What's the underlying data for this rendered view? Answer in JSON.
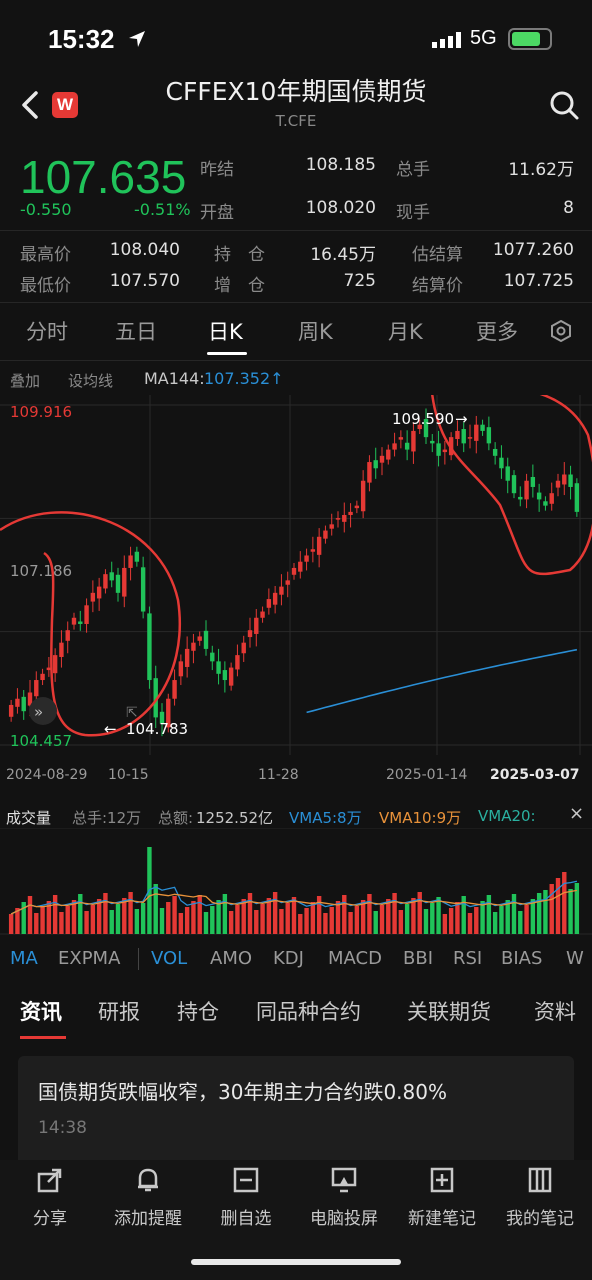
{
  "status_bar": {
    "time": "15:32",
    "network": "5G"
  },
  "header": {
    "title": "CFFEX10年期国债期货",
    "code": "T.CFE",
    "logo": "W"
  },
  "quote": {
    "price": "107.635",
    "change": "-0.550",
    "change_pct": "-0.51%",
    "prev_close_label": "昨结",
    "prev_close": "108.185",
    "total_vol_label": "总手",
    "total_vol": "11.62万",
    "open_label": "开盘",
    "open": "108.020",
    "cur_vol_label": "现手",
    "cur_vol": "8",
    "high_label": "最高价",
    "high": "108.040",
    "oi_label": "持　仓",
    "oi": "16.45万",
    "est_settle_label": "估结算",
    "est_settle": "1077.260",
    "low_label": "最低价",
    "low": "107.570",
    "oi_chg_label": "增　仓",
    "oi_chg": "725",
    "settle_label": "结算价",
    "settle": "107.725"
  },
  "period_tabs": [
    "分时",
    "五日",
    "日K",
    "周K",
    "月K",
    "更多"
  ],
  "chart_toolbar": {
    "overlay": "叠加",
    "set_ma": "设均线",
    "ma_label": "MA144:",
    "ma_value": "107.352↑"
  },
  "chart_data": {
    "type": "candlestick",
    "y_labels": {
      "top": "109.916",
      "mid": "107.186",
      "bottom": "104.457"
    },
    "ylim": [
      104.457,
      109.916
    ],
    "annotations": {
      "max": "109.590",
      "min": "104.783"
    },
    "x_labels": [
      "2024-08-29",
      "10-15",
      "11-28",
      "2025-01-14",
      "2025-03-07"
    ],
    "closes": [
      105.1,
      105.2,
      105.0,
      105.3,
      105.5,
      105.6,
      105.7,
      105.9,
      106.1,
      106.3,
      106.5,
      106.4,
      106.7,
      106.9,
      107.0,
      107.2,
      107.1,
      106.9,
      107.3,
      107.5,
      107.4,
      106.6,
      105.5,
      104.9,
      104.8,
      105.2,
      105.5,
      105.8,
      106.0,
      106.1,
      106.2,
      106.0,
      105.8,
      105.6,
      105.5,
      105.7,
      105.9,
      106.1,
      106.3,
      106.5,
      106.6,
      106.8,
      106.9,
      107.0,
      107.1,
      107.3,
      107.4,
      107.5,
      107.6,
      107.8,
      107.9,
      108.0,
      108.1,
      108.15,
      108.2,
      108.3,
      108.7,
      109.0,
      108.9,
      109.1,
      109.2,
      109.3,
      109.4,
      109.2,
      109.5,
      109.6,
      109.4,
      109.3,
      109.1,
      109.2,
      109.4,
      109.5,
      109.3,
      109.4,
      109.6,
      109.5,
      109.3,
      109.1,
      108.9,
      108.7,
      108.5,
      108.4,
      108.7,
      108.6,
      108.4,
      108.3,
      108.5,
      108.7,
      108.8,
      108.6,
      108.2
    ]
  },
  "volume_bar": {
    "title": "成交量",
    "total_hands": "总手:12万",
    "total_amount_label": "总额:",
    "total_amount": "1252.52亿",
    "vma5": "VMA5:8万",
    "vma10": "VMA10:9万",
    "vma20": "VMA20:"
  },
  "indicator_tabs": [
    "MA",
    "EXPMA",
    "VOL",
    "AMO",
    "KDJ",
    "MACD",
    "BBI",
    "RSI",
    "BIAS",
    "W"
  ],
  "news_tabs": [
    "资讯",
    "研报",
    "持仓",
    "同品种合约",
    "关联期货",
    "资料"
  ],
  "news": {
    "title": "国债期货跌幅收窄，30年期主力合约跌0.80%",
    "time": "14:38"
  },
  "bottom_nav": [
    "分享",
    "添加提醒",
    "删自选",
    "电脑投屏",
    "新建笔记",
    "我的笔记"
  ],
  "colors": {
    "up": "#e53935",
    "down": "#20c35a",
    "ma": "#2a8fd6",
    "orange": "#e8923a"
  }
}
